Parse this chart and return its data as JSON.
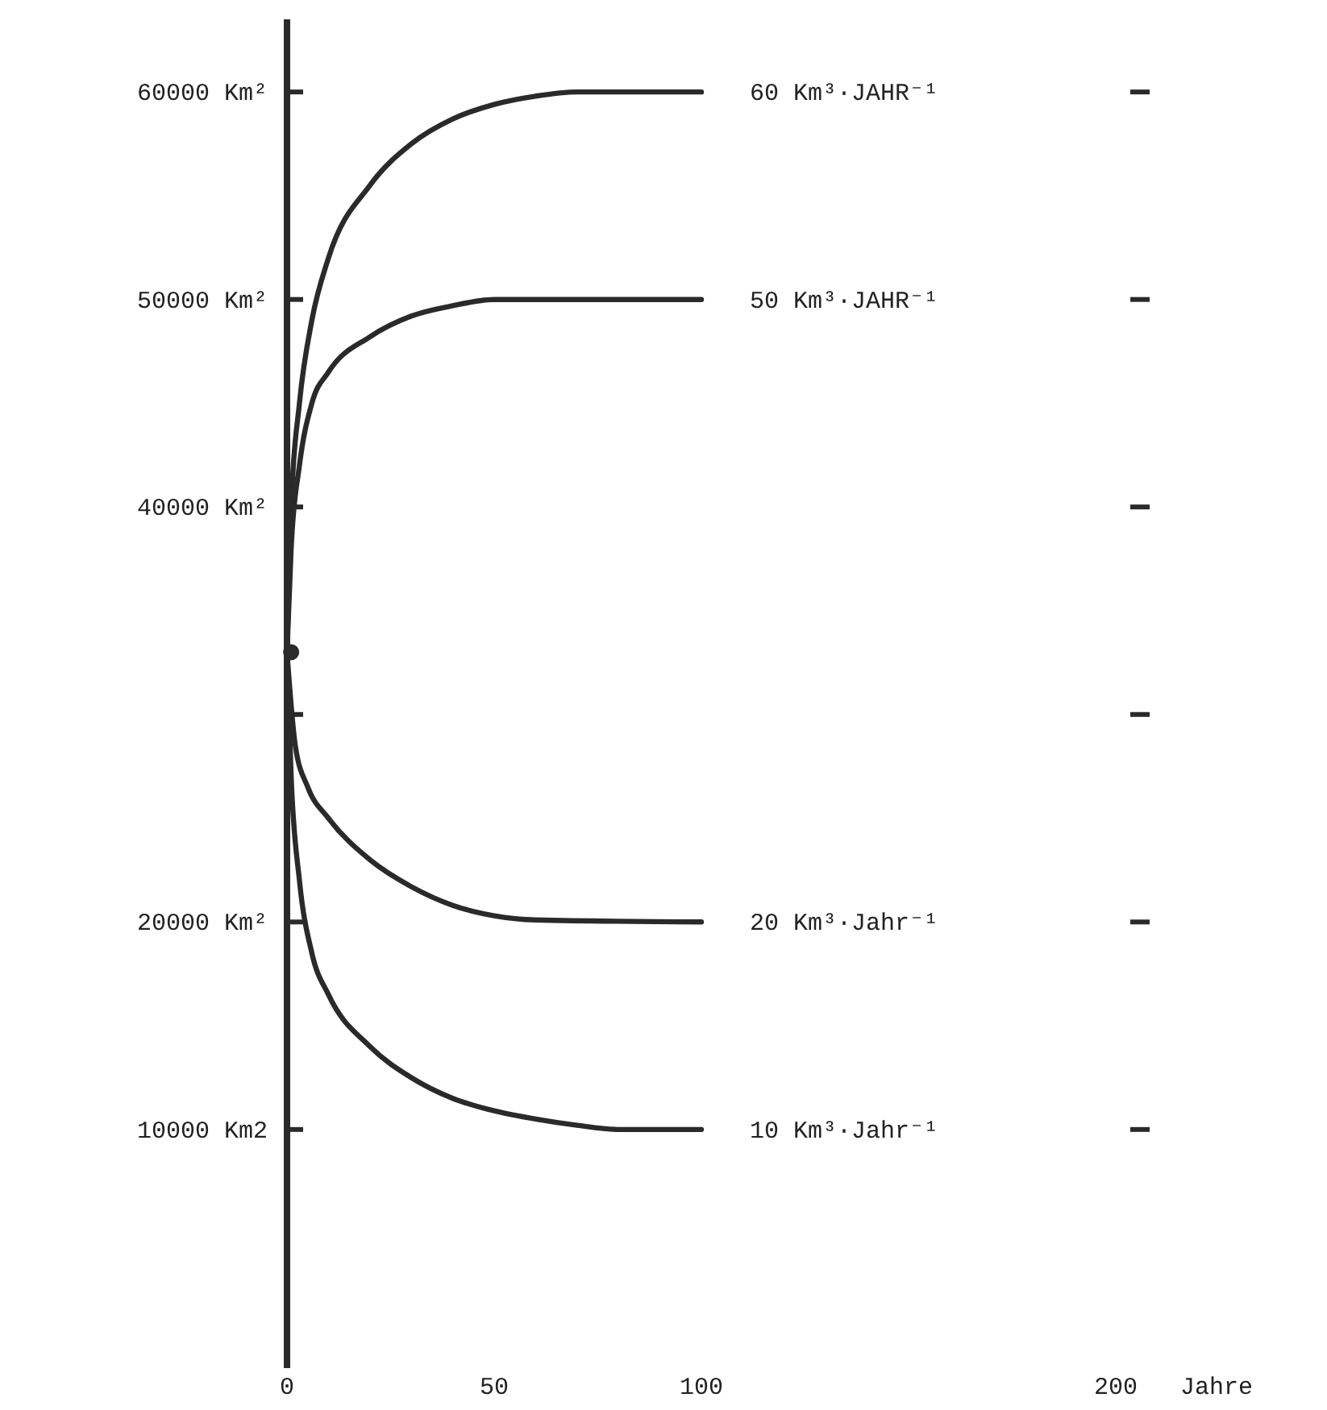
{
  "chart_data": {
    "type": "line",
    "xlabel": "Jahre",
    "xlim": [
      0,
      200
    ],
    "xticks": [
      0,
      50,
      100,
      200
    ],
    "ylim": [
      -1500,
      63500
    ],
    "yticks": [
      {
        "value": 10000,
        "label": "10000 Km2"
      },
      {
        "value": 20000,
        "label": "20000 Km²"
      },
      {
        "value": 30000,
        "label": null
      },
      {
        "value": 40000,
        "label": "40000 Km²"
      },
      {
        "value": 50000,
        "label": "50000 Km²"
      },
      {
        "value": 60000,
        "label": "60000 Km²"
      }
    ],
    "grid": false,
    "marker": "none",
    "line_style": "solid",
    "series": [
      {
        "name": "60 Km³·JAHR⁻¹",
        "color": "#2a2a2a",
        "x": [
          0,
          1,
          3,
          6,
          10,
          20,
          30,
          40,
          50,
          60,
          70,
          100
        ],
        "values": [
          33000,
          40000,
          45000,
          49000,
          52000,
          55500,
          57500,
          58700,
          59400,
          59800,
          60000,
          60000
        ]
      },
      {
        "name": "50 Km³·JAHR⁻¹",
        "color": "#2a2a2a",
        "x": [
          0,
          1,
          3,
          6,
          10,
          20,
          30,
          40,
          50,
          100
        ],
        "values": [
          33000,
          38000,
          42000,
          45000,
          46500,
          48200,
          49200,
          49700,
          50000,
          50000
        ]
      },
      {
        "name": "20 Km³·Jahr⁻¹",
        "color": "#2a2a2a",
        "x": [
          0,
          2,
          5,
          10,
          20,
          30,
          40,
          50,
          60,
          100
        ],
        "values": [
          33000,
          28500,
          26500,
          25000,
          23000,
          21700,
          20800,
          20300,
          20100,
          20000
        ]
      },
      {
        "name": "10 Km³·Jahr⁻¹",
        "color": "#2a2a2a",
        "x": [
          0,
          1,
          3,
          6,
          10,
          20,
          30,
          40,
          50,
          60,
          70,
          80,
          100
        ],
        "values": [
          33000,
          27000,
          22000,
          18500,
          16500,
          14000,
          12500,
          11500,
          10900,
          10500,
          10200,
          10000,
          10000
        ]
      },
      {
        "type": "scatter",
        "color": "#2a2a2a",
        "x": [
          1
        ],
        "values": [
          33000
        ],
        "marker": "circle"
      }
    ]
  }
}
